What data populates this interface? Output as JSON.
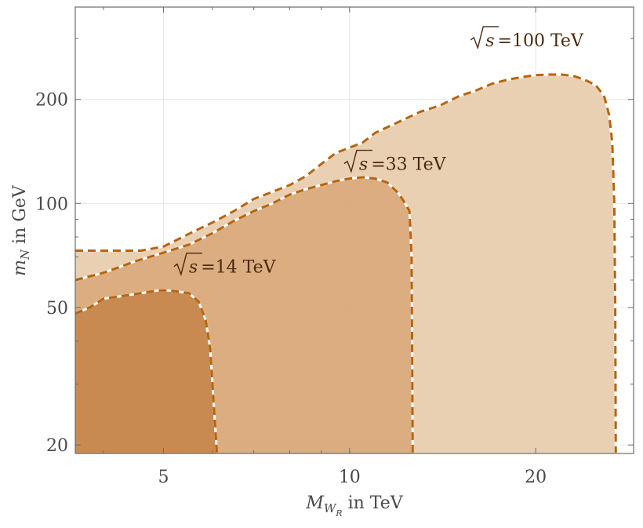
{
  "chart_data": {
    "type": "area",
    "x_axis": {
      "label_main": "M",
      "label_sub1": "W",
      "label_sub2": "R",
      "label_rest": " in TeV",
      "scale": "log",
      "range": [
        3.6,
        28.8
      ],
      "ticks": [
        5,
        10,
        20
      ],
      "tick_labels": [
        "5",
        "10",
        "20"
      ],
      "minor_ticks": [
        4,
        6,
        7,
        8,
        9,
        30
      ]
    },
    "y_axis": {
      "label_main": "m",
      "label_sub": "N",
      "label_rest": " in GeV",
      "scale": "log",
      "range": [
        18.9,
        370
      ],
      "ticks": [
        20,
        50,
        100,
        200
      ],
      "tick_labels": [
        "20",
        "50",
        "100",
        "200"
      ],
      "minor_ticks": [
        30,
        40,
        60,
        70,
        80,
        90,
        300
      ]
    },
    "grid": true,
    "series": [
      {
        "name": "√s =100 TeV",
        "label_rest": "=100 TeV",
        "fill": "#e8cbab",
        "stroke": "#b5650f",
        "label_at": [
          15.7,
          285
        ],
        "x": [
          3.6,
          4.3,
          4.6,
          5.0,
          5.3,
          5.6,
          6.0,
          6.5,
          7.0,
          7.5,
          8.0,
          8.5,
          9.0,
          9.5,
          10.0,
          10.5,
          11.0,
          12.0,
          13.0,
          14.0,
          15.0,
          16.0,
          17.0,
          18.0,
          19.0,
          20.0,
          21.0,
          22.0,
          23.0,
          24.0,
          25.0,
          25.8,
          26.3,
          26.6,
          26.8,
          26.9,
          26.95
        ],
        "y": [
          73,
          73,
          73,
          75,
          79,
          83,
          88,
          95,
          103,
          108,
          113,
          120,
          130,
          140,
          145,
          150,
          160,
          172,
          184,
          192,
          204,
          212,
          222,
          228,
          232,
          235,
          236,
          236,
          234,
          228,
          220,
          205,
          180,
          150,
          100,
          50,
          19
        ]
      },
      {
        "name": "√s =33 TeV",
        "label_rest": "=33 TeV",
        "fill": "#d9a87b",
        "stroke": "#b5650f",
        "label_at": [
          9.8,
          125
        ],
        "x": [
          3.6,
          4.0,
          4.5,
          5.0,
          5.5,
          6.0,
          6.5,
          7.0,
          7.5,
          8.0,
          8.5,
          9.0,
          9.5,
          10.0,
          10.5,
          11.0,
          11.5,
          12.0,
          12.3,
          12.5,
          12.6,
          12.65
        ],
        "y": [
          60,
          63,
          68,
          72,
          76,
          82,
          89,
          95,
          100,
          106,
          110,
          113,
          116,
          118,
          119,
          118,
          115,
          107,
          100,
          95,
          70,
          19
        ]
      },
      {
        "name": "√s =14 TeV",
        "label_rest": "=14 TeV",
        "fill": "#c6864c",
        "stroke": "#b5650f",
        "label_at": [
          5.2,
          63
        ],
        "x": [
          3.6,
          3.8,
          4.0,
          4.3,
          4.6,
          4.9,
          5.1,
          5.3,
          5.5,
          5.7,
          5.85,
          5.95,
          6.0,
          6.05,
          6.1
        ],
        "y": [
          48,
          50,
          53,
          54,
          55,
          56,
          56,
          55.5,
          55,
          52,
          46,
          38,
          30,
          24,
          19
        ]
      }
    ]
  }
}
